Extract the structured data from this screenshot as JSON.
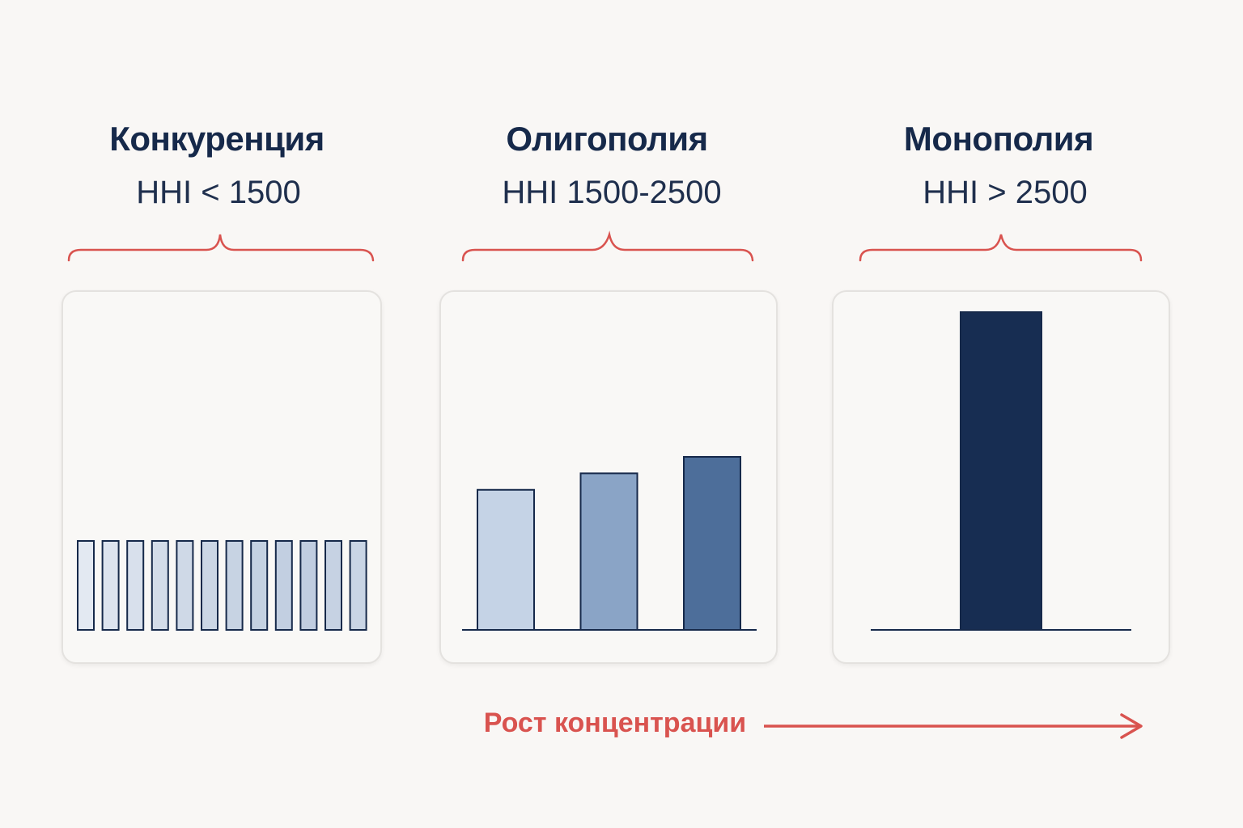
{
  "columns": [
    {
      "title": "Конкуренция",
      "subtitle": "HHI < 1500"
    },
    {
      "title": "Олигополия",
      "subtitle": "HHI 1500-2500"
    },
    {
      "title": "Монополия",
      "subtitle": "HHI > 2500"
    }
  ],
  "footer": {
    "label": "Рост концентрации"
  },
  "colors": {
    "accent_red": "#d9534f",
    "navy": "#16294a",
    "bar_light": "#c5d3e6",
    "bar_mid": "#8aa4c6",
    "bar_dark": "#4d6e9a",
    "bar_darkest": "#172d52"
  },
  "chart_data": [
    {
      "type": "bar",
      "series": [
        {
          "values": [
            1,
            1,
            1,
            1,
            1,
            1,
            1,
            1,
            1,
            1,
            1,
            1
          ]
        }
      ],
      "colors": [
        "#e3e9f2",
        "#dde4ef",
        "#d8e0ec",
        "#d3dce9",
        "#cfd9e7",
        "#cbd6e5",
        "#c7d3e3",
        "#c4d1e2",
        "#c2cfe1",
        "#c0cde0",
        "#c6d2e3",
        "#c9d5e5"
      ]
    },
    {
      "type": "bar",
      "series": [
        {
          "values": [
            3.4,
            3.8,
            4.2
          ]
        }
      ],
      "colors": [
        "#c5d3e6",
        "#8aa4c6",
        "#4d6e9a"
      ]
    },
    {
      "type": "bar",
      "series": [
        {
          "values": [
            1
          ]
        }
      ],
      "colors": [
        "#172d52"
      ]
    }
  ]
}
